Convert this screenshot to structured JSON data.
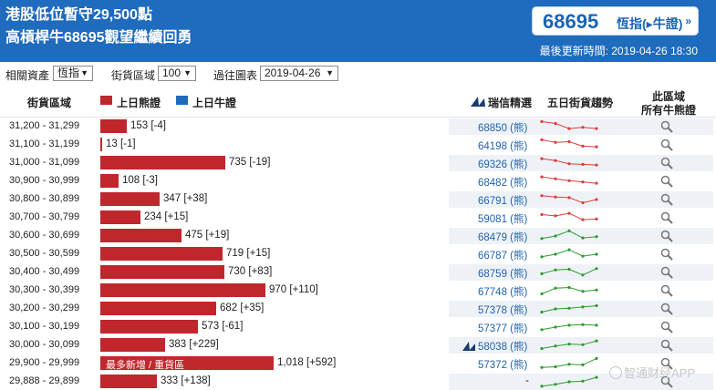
{
  "headline": {
    "line1": "港股低位暫守29,500點",
    "line2": "高槓桿牛68695觀望繼續回勇"
  },
  "badge": {
    "code": "68695",
    "label": "恆指(▸牛證)",
    "arrow": "»"
  },
  "updated": "最後更新時間: 2019-04-26 18:30",
  "filters": {
    "asset_label": "相關資產",
    "asset_value": "恆指",
    "range_label": "街貨區域",
    "range_value": "100",
    "date_label": "過往圖表",
    "date_value": "2019-04-26"
  },
  "columns": {
    "range": "街貨區域",
    "bear_legend": "上日熊證",
    "bull_legend": "上日牛證",
    "pick": "瑞信精選",
    "trend": "五日街貨趨勢",
    "all_line1": "此區域",
    "all_line2": "所有牛熊證"
  },
  "colors": {
    "header": "#1f6bbd",
    "bear": "#c0272d",
    "bull": "#1f6bbd",
    "trend_down": "#e03b3b",
    "trend_up": "#2e9b2e"
  },
  "rows": [
    {
      "range": "31,200 - 31,299",
      "value": 153,
      "label": "153 [-4]",
      "note": "",
      "warrant": "68850 (熊)",
      "pick": false,
      "trend": "down",
      "points": [
        0.9,
        0.75,
        0.35,
        0.45,
        0.35
      ]
    },
    {
      "range": "31,100 - 31,199",
      "value": 13,
      "label": "13 [-1]",
      "note": "",
      "warrant": "64198 (熊)",
      "pick": false,
      "trend": "down",
      "points": [
        0.9,
        0.7,
        0.75,
        0.4,
        0.35
      ]
    },
    {
      "range": "31,000 - 31,099",
      "value": 735,
      "label": "735 [-19]",
      "note": "",
      "warrant": "69326 (熊)",
      "pick": false,
      "trend": "down",
      "points": [
        0.85,
        0.7,
        0.45,
        0.4,
        0.35
      ]
    },
    {
      "range": "30,900 - 30,999",
      "value": 108,
      "label": "108 [-3]",
      "note": "",
      "warrant": "68482 (熊)",
      "pick": false,
      "trend": "down",
      "points": [
        0.85,
        0.7,
        0.55,
        0.45,
        0.35
      ]
    },
    {
      "range": "30,800 - 30,899",
      "value": 347,
      "label": "347 [+38]",
      "note": "",
      "warrant": "66791 (熊)",
      "pick": false,
      "trend": "down",
      "points": [
        0.8,
        0.7,
        0.65,
        0.25,
        0.5
      ]
    },
    {
      "range": "30,700 - 30,799",
      "value": 234,
      "label": "234 [+15]",
      "note": "",
      "warrant": "59081 (熊)",
      "pick": false,
      "trend": "down",
      "points": [
        0.75,
        0.65,
        0.85,
        0.35,
        0.4
      ]
    },
    {
      "range": "30,600 - 30,699",
      "value": 475,
      "label": "475 [+19]",
      "note": "",
      "warrant": "68479 (熊)",
      "pick": false,
      "trend": "up",
      "points": [
        0.3,
        0.5,
        0.9,
        0.35,
        0.45
      ]
    },
    {
      "range": "30,500 - 30,599",
      "value": 719,
      "label": "719 [+15]",
      "note": "",
      "warrant": "66787 (熊)",
      "pick": false,
      "trend": "up",
      "points": [
        0.3,
        0.5,
        0.85,
        0.35,
        0.5
      ]
    },
    {
      "range": "30,400 - 30,499",
      "value": 730,
      "label": "730 [+83]",
      "note": "",
      "warrant": "68759 (熊)",
      "pick": false,
      "trend": "up",
      "points": [
        0.4,
        0.7,
        0.75,
        0.3,
        0.8
      ]
    },
    {
      "range": "30,300 - 30,399",
      "value": 970,
      "label": "970 [+110]",
      "note": "",
      "warrant": "67748 (熊)",
      "pick": false,
      "trend": "up",
      "points": [
        0.25,
        0.7,
        0.75,
        0.45,
        0.55
      ]
    },
    {
      "range": "30,200 - 30,299",
      "value": 682,
      "label": "682 [+35]",
      "note": "",
      "warrant": "57378 (熊)",
      "pick": false,
      "trend": "up",
      "points": [
        0.25,
        0.5,
        0.55,
        0.65,
        0.75
      ]
    },
    {
      "range": "30,100 - 30,199",
      "value": 573,
      "label": "573 [-61]",
      "note": "",
      "warrant": "57377 (熊)",
      "pick": false,
      "trend": "up",
      "points": [
        0.3,
        0.5,
        0.65,
        0.7,
        0.65
      ]
    },
    {
      "range": "30,000 - 30,099",
      "value": 383,
      "label": "383 [+229]",
      "note": "",
      "warrant": "58038 (熊)",
      "pick": true,
      "trend": "up",
      "points": [
        0.25,
        0.45,
        0.6,
        0.55,
        0.85
      ]
    },
    {
      "range": "29,900 - 29,999",
      "value": 1018,
      "label": "1,018 [+592]",
      "note": "最多新增 / 重貨區",
      "warrant": "57372 (熊)",
      "pick": false,
      "trend": "up",
      "points": [
        0.2,
        0.25,
        0.45,
        0.4,
        0.9
      ]
    },
    {
      "range": "29,888 - 29,899",
      "value": 333,
      "label": "333 [+138]",
      "note": "",
      "warrant": "-",
      "pick": false,
      "trend": "up",
      "points": [
        0.15,
        0.3,
        0.5,
        0.55,
        0.85
      ]
    }
  ],
  "watermark": "智通财经APP"
}
